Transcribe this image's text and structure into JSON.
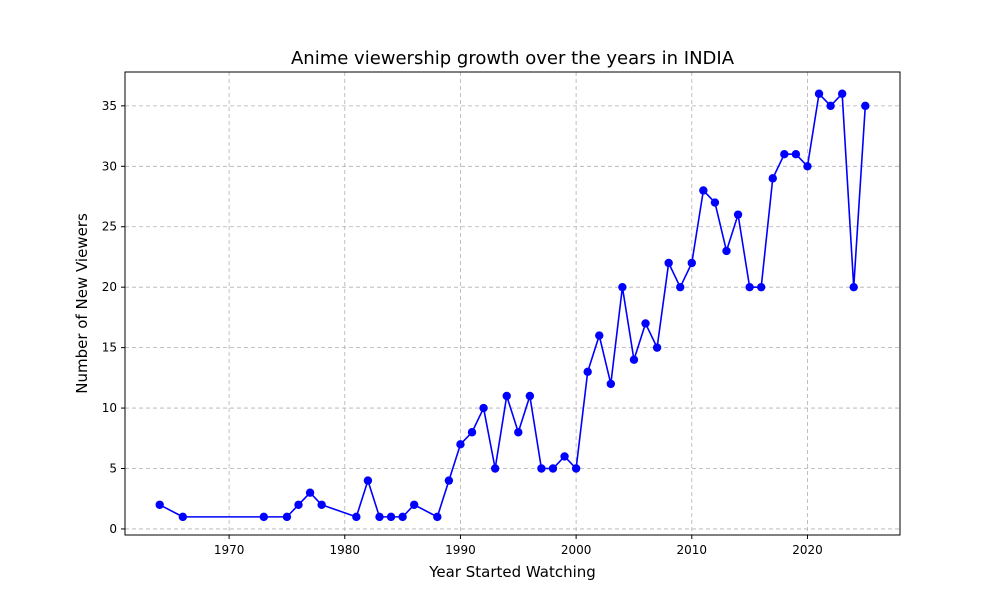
{
  "chart_data": {
    "type": "line",
    "title": "Anime viewership growth over the years in INDIA",
    "xlabel": "Year Started Watching",
    "ylabel": "Number of New Viewers",
    "xlim": [
      1961,
      2028
    ],
    "ylim": [
      -0.5,
      37.8
    ],
    "xticks": [
      1970,
      1980,
      1990,
      2000,
      2010,
      2020
    ],
    "yticks": [
      0,
      5,
      10,
      15,
      20,
      25,
      30,
      35
    ],
    "grid": true,
    "grid_style": "dashed",
    "marker": "circle",
    "line_color": "#0000ff",
    "series": [
      {
        "x": [
          1964,
          1966,
          1973,
          1975,
          1976,
          1977,
          1978,
          1981,
          1982,
          1983,
          1984,
          1985,
          1986,
          1988,
          1989,
          1990,
          1991,
          1992,
          1993,
          1994,
          1995,
          1996,
          1997,
          1998,
          1999,
          2000,
          2001,
          2002,
          2003,
          2004,
          2005,
          2006,
          2007,
          2008,
          2009,
          2010,
          2011,
          2012,
          2013,
          2014,
          2015,
          2016,
          2017,
          2018,
          2019,
          2020,
          2021,
          2022,
          2023,
          2024,
          2025
        ],
        "values": [
          2,
          1,
          1,
          1,
          2,
          3,
          2,
          1,
          4,
          1,
          1,
          1,
          2,
          1,
          4,
          7,
          8,
          10,
          5,
          11,
          8,
          11,
          5,
          5,
          6,
          5,
          13,
          16,
          12,
          20,
          14,
          17,
          15,
          22,
          20,
          22,
          28,
          27,
          23,
          26,
          20,
          20,
          29,
          31,
          31,
          30,
          36,
          35,
          36,
          20,
          35
        ]
      }
    ]
  }
}
